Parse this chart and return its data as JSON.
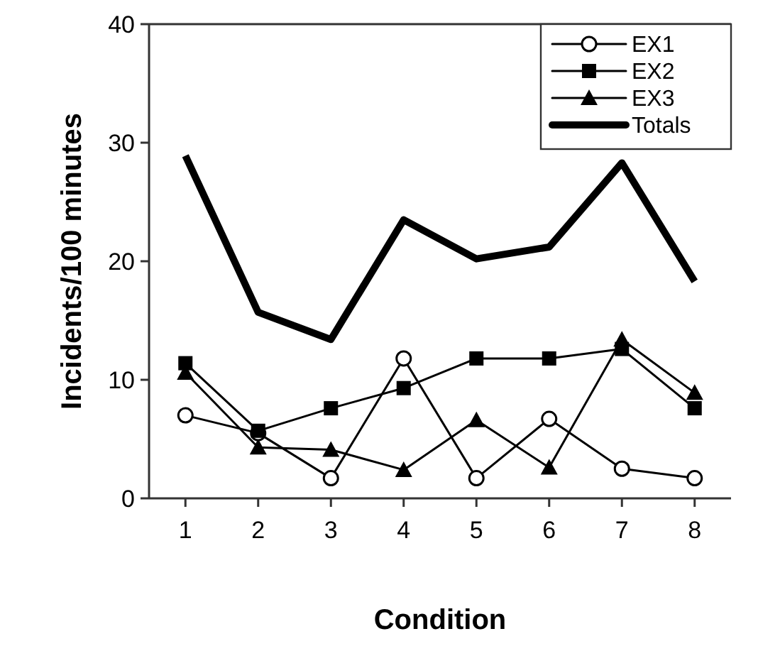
{
  "chart_data": {
    "type": "line",
    "xlabel": "Condition",
    "ylabel": "Incidents/100 minutes",
    "categories": [
      "1",
      "2",
      "3",
      "4",
      "5",
      "6",
      "7",
      "8"
    ],
    "ylim": [
      0,
      40
    ],
    "yticks": [
      0,
      10,
      20,
      30,
      40
    ],
    "grid": false,
    "legend": "top right",
    "series": [
      {
        "name": "EX1",
        "color": "#000000",
        "marker": "circle",
        "values": [
          7,
          5.5,
          1.7,
          11.8,
          1.7,
          6.7,
          2.5,
          1.7
        ]
      },
      {
        "name": "EX2",
        "color": "#000000",
        "marker": "square",
        "values": [
          11.4,
          5.7,
          7.6,
          9.3,
          11.8,
          11.8,
          12.6,
          7.6
        ]
      },
      {
        "name": "EX3",
        "color": "#000000",
        "marker": "triangle",
        "values": [
          10.6,
          4.3,
          4.1,
          2.4,
          6.6,
          2.6,
          13.4,
          8.9
        ]
      },
      {
        "name": "Totals",
        "color": "#000000",
        "marker": "none",
        "values": [
          28.9,
          15.7,
          13.4,
          23.5,
          20.2,
          21.2,
          28.3,
          18.3
        ]
      }
    ]
  }
}
